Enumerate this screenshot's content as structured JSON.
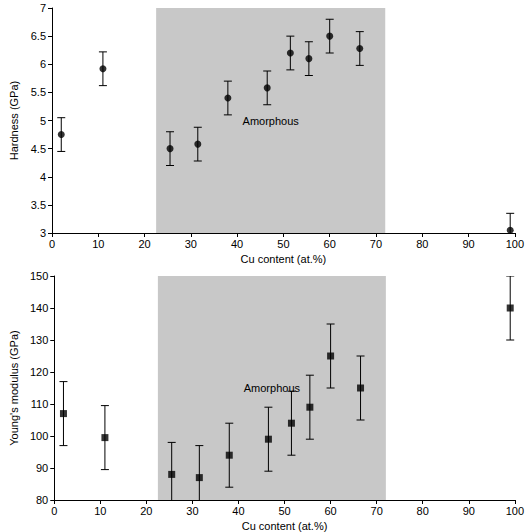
{
  "chart_data": [
    {
      "type": "scatter",
      "x_label": "Cu content (at.%)",
      "y_label": "Hardness (GPa)",
      "x": [
        2,
        11,
        25.5,
        31.5,
        38,
        46.5,
        51.5,
        55.5,
        60,
        66.5,
        99
      ],
      "values": [
        4.75,
        5.92,
        4.5,
        4.58,
        5.4,
        5.58,
        6.2,
        6.1,
        6.5,
        6.28,
        3.05
      ],
      "errors": [
        0.3,
        0.3,
        0.3,
        0.3,
        0.3,
        0.3,
        0.3,
        0.3,
        0.3,
        0.3,
        0.3
      ],
      "xlim": [
        0,
        100
      ],
      "xticks": [
        0,
        10,
        20,
        30,
        40,
        50,
        60,
        70,
        80,
        90,
        100
      ],
      "ylim": [
        3,
        7
      ],
      "yticks": [
        3,
        3.5,
        4,
        4.5,
        5,
        5.5,
        6,
        6.5,
        7
      ],
      "shaded_region": {
        "label": "Amorphous",
        "x": [
          22.5,
          72
        ]
      },
      "color": "#000000",
      "marker": "circle",
      "grid": false
    },
    {
      "type": "scatter",
      "x_label": "Cu content (at.%)",
      "y_label": "Young's modulus (GPa)",
      "x": [
        2,
        11,
        25.5,
        31.5,
        38,
        46.5,
        51.5,
        55.5,
        60,
        66.5,
        99
      ],
      "values": [
        107,
        99.5,
        88,
        87,
        94,
        99,
        104,
        109,
        125,
        115,
        140
      ],
      "errors": [
        10,
        10,
        10,
        10,
        10,
        10,
        10,
        10,
        10,
        10,
        10
      ],
      "xlim": [
        0,
        100
      ],
      "xticks": [
        0,
        10,
        20,
        30,
        40,
        50,
        60,
        70,
        80,
        90,
        100
      ],
      "ylim": [
        80,
        150
      ],
      "yticks": [
        80,
        90,
        100,
        110,
        120,
        130,
        140,
        150
      ],
      "shaded_region": {
        "label": "Amorphous",
        "x": [
          22.5,
          72
        ]
      },
      "color": "#000000",
      "marker": "square",
      "grid": false
    }
  ]
}
